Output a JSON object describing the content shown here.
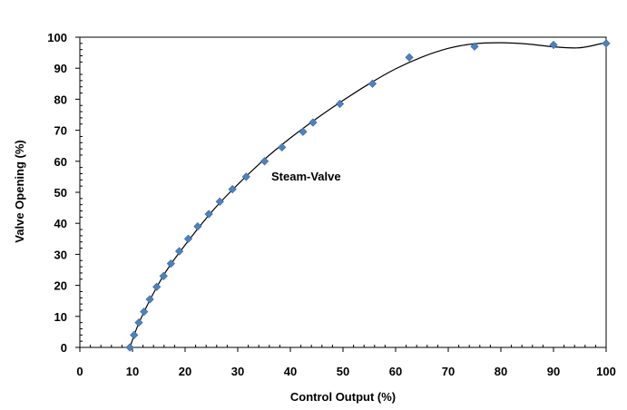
{
  "chart_data": {
    "type": "scatter",
    "title": "",
    "xlabel": "Control Output (%)",
    "ylabel": "Valve Opening (%)",
    "xlim": [
      0,
      100
    ],
    "ylim": [
      0,
      100
    ],
    "x_ticks": [
      0,
      10,
      20,
      30,
      40,
      50,
      60,
      70,
      80,
      90,
      100
    ],
    "y_ticks": [
      0,
      10,
      20,
      30,
      40,
      50,
      60,
      70,
      80,
      90,
      100
    ],
    "grid": false,
    "legend": "none",
    "annotation": "Steam-Valve",
    "series": [
      {
        "marker": "diamond",
        "color": "#4f81bd",
        "x": [
          9.5,
          10.3,
          11.2,
          12.2,
          13.3,
          14.6,
          15.9,
          17.3,
          18.9,
          20.6,
          22.4,
          24.5,
          26.6,
          29.0,
          31.6,
          35.1,
          38.4,
          42.4,
          44.3,
          49.4,
          55.6,
          62.6,
          75.0,
          90.0,
          100.0
        ],
        "y": [
          0,
          4,
          8,
          11.5,
          15.5,
          19.5,
          23,
          27,
          31,
          35,
          39,
          43,
          47,
          51,
          55,
          60,
          64.5,
          69.5,
          72.5,
          78.5,
          85,
          93.5,
          97,
          97.5,
          98
        ]
      },
      {
        "type": "line",
        "color": "#000000",
        "x": [
          9.5,
          11,
          12.5,
          14,
          16,
          18,
          20,
          23,
          26,
          30,
          35,
          40,
          45,
          50,
          55,
          60,
          65,
          70,
          75,
          80,
          85,
          90,
          95,
          100
        ],
        "y": [
          0,
          7,
          12.5,
          17.5,
          23.5,
          28.5,
          33,
          39.5,
          45.5,
          52.5,
          60.5,
          67.5,
          73.8,
          79.6,
          85,
          89.8,
          93.6,
          96.4,
          97.9,
          98.2,
          97.8,
          96.9,
          96.6,
          98.3
        ]
      }
    ]
  }
}
